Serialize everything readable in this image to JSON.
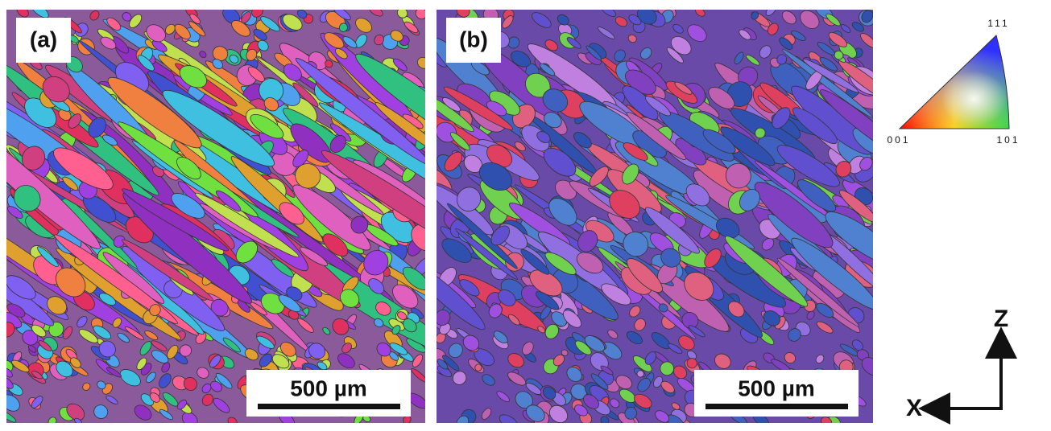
{
  "panels": [
    {
      "label": "(a)",
      "scale_bar": "500 µm"
    },
    {
      "label": "(b)",
      "scale_bar": "500 µm"
    }
  ],
  "legend": {
    "top": "111",
    "left": "001",
    "right": "101"
  },
  "axes": {
    "vertical": "Z",
    "horizontal": "X"
  }
}
